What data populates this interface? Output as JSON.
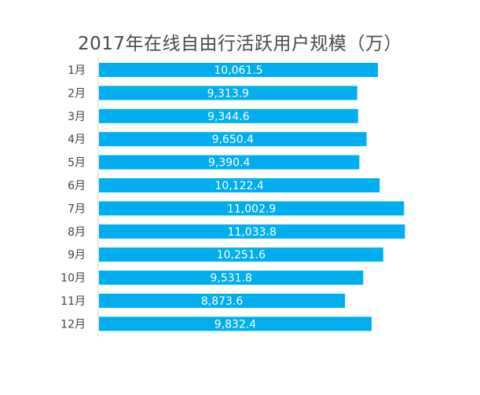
{
  "chart_data": {
    "type": "bar",
    "orientation": "horizontal",
    "title": "2017年在线自由行活跃用户规模（万）",
    "categories": [
      "1月",
      "2月",
      "3月",
      "4月",
      "5月",
      "6月",
      "7月",
      "8月",
      "9月",
      "10月",
      "11月",
      "12月"
    ],
    "values": [
      10061.5,
      9313.9,
      9344.6,
      9650.4,
      9390.4,
      10122.4,
      11002.9,
      11033.8,
      10251.6,
      9531.8,
      8873.6,
      9832.4
    ],
    "value_labels": [
      "10,061.5",
      "9,313.9",
      "9,344.6",
      "9,650.4",
      "9,390.4",
      "10,122.4",
      "11,002.9",
      "11,033.8",
      "10,251.6",
      "9,531.8",
      "8,873.6",
      "9,832.4"
    ],
    "xlabel": "",
    "ylabel": "",
    "xlim": [
      0,
      11900
    ],
    "grid": false,
    "bar_color": "#00AEEF",
    "label_color": "#FFFFFF"
  }
}
